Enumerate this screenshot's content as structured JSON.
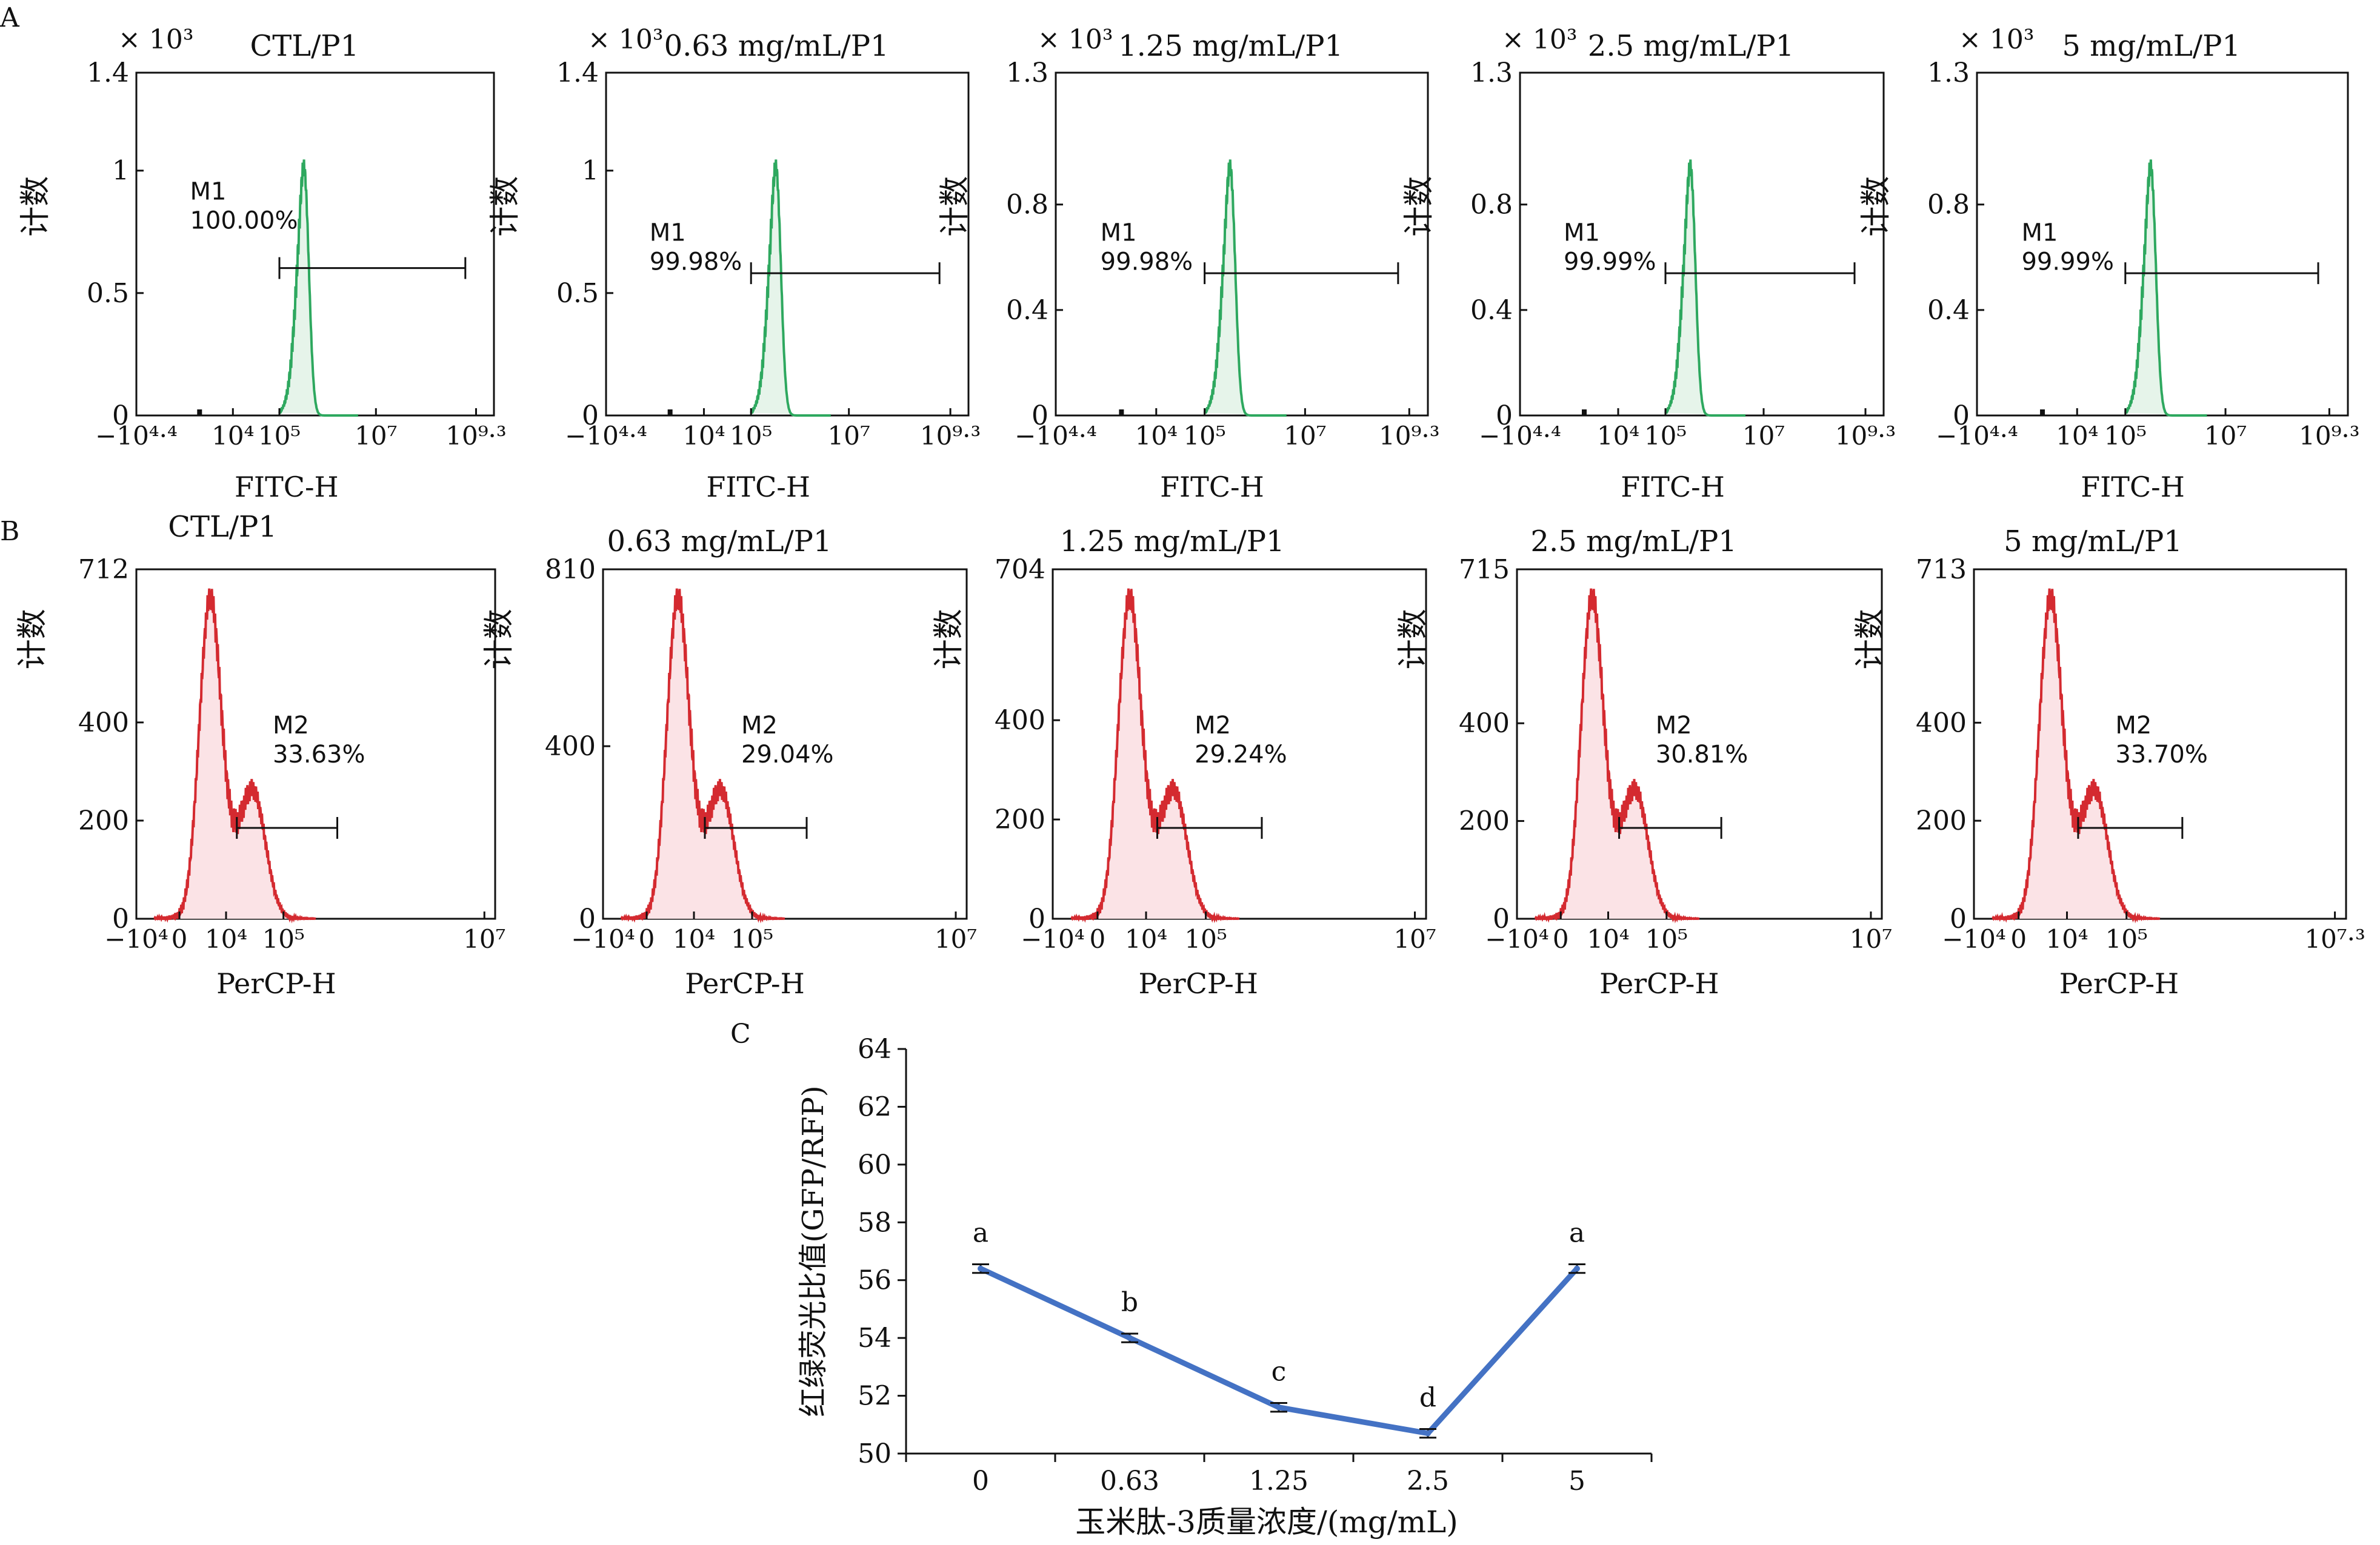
{
  "colors": {
    "fitc": "#2ea85f",
    "fitc_fill": "#e6f4ea",
    "percp": "#d42a30",
    "percp_fill": "#fbe3e6",
    "line": "#4472c4",
    "axis": "#111111"
  },
  "panel_labels": {
    "a": "A",
    "b": "B",
    "c": "C"
  },
  "axis_words": {
    "count": "计数",
    "fitc_x": "FITC-H",
    "percp_x": "PerCP-H"
  },
  "panel_a": [
    {
      "title": "CTL/P1",
      "multiplier": "× 10³",
      "ymax": 1.4,
      "yticks": [
        "0",
        "0.5",
        "1",
        "1.4"
      ],
      "gate": "M1",
      "percent": "100.00%",
      "xticks": [
        "−10⁴·⁴",
        "10⁴",
        "10⁵",
        "10⁷",
        "10⁹·³"
      ]
    },
    {
      "title": "0.63 mg/mL/P1",
      "multiplier": "× 10³",
      "ymax": 1.4,
      "yticks": [
        "0",
        "0.5",
        "1",
        "1.4"
      ],
      "gate": "M1",
      "percent": "99.98%",
      "xticks": [
        "−10⁴·⁴",
        "10⁴",
        "10⁵",
        "10⁷",
        "10⁹·³"
      ]
    },
    {
      "title": "1.25 mg/mL/P1",
      "multiplier": "× 10³",
      "ymax": 1.3,
      "yticks": [
        "0",
        "0.4",
        "0.8",
        "1.3"
      ],
      "gate": "M1",
      "percent": "99.98%",
      "xticks": [
        "−10⁴·⁴",
        "10⁴",
        "10⁵",
        "10⁷",
        "10⁹·³"
      ]
    },
    {
      "title": "2.5 mg/mL/P1",
      "multiplier": "× 10³",
      "ymax": 1.3,
      "yticks": [
        "0",
        "0.4",
        "0.8",
        "1.3"
      ],
      "gate": "M1",
      "percent": "99.99%",
      "xticks": [
        "−10⁴·⁴",
        "10⁴",
        "10⁵",
        "10⁷",
        "10⁹·³"
      ]
    },
    {
      "title": "5 mg/mL/P1",
      "multiplier": "× 10³",
      "ymax": 1.3,
      "yticks": [
        "0",
        "0.4",
        "0.8",
        "1.3"
      ],
      "gate": "M1",
      "percent": "99.99%",
      "xticks": [
        "−10⁴·⁴",
        "10⁴",
        "10⁵",
        "10⁷",
        "10⁹·³"
      ]
    }
  ],
  "panel_b": [
    {
      "title": "CTL/P1",
      "ymax": 712,
      "yticks": [
        "0",
        "200",
        "400",
        "712"
      ],
      "gate": "M2",
      "percent": "33.63%",
      "xticks": [
        "−10⁴",
        "0",
        "10⁴",
        "10⁵",
        "10⁷"
      ]
    },
    {
      "title": "0.63 mg/mL/P1",
      "ymax": 810,
      "yticks": [
        "0",
        "400",
        "810"
      ],
      "gate": "M2",
      "percent": "29.04%",
      "xticks": [
        "−10⁴",
        "0",
        "10⁴",
        "10⁵",
        "10⁷"
      ]
    },
    {
      "title": "1.25 mg/mL/P1",
      "ymax": 704,
      "yticks": [
        "0",
        "200",
        "400",
        "704"
      ],
      "gate": "M2",
      "percent": "29.24%",
      "xticks": [
        "−10⁴",
        "0",
        "10⁴",
        "10⁵",
        "10⁷"
      ]
    },
    {
      "title": "2.5 mg/mL/P1",
      "ymax": 715,
      "yticks": [
        "0",
        "200",
        "400",
        "715"
      ],
      "gate": "M2",
      "percent": "30.81%",
      "xticks": [
        "−10⁴",
        "0",
        "10⁴",
        "10⁵",
        "10⁷"
      ]
    },
    {
      "title": "5 mg/mL/P1",
      "ymax": 713,
      "yticks": [
        "0",
        "200",
        "400",
        "713"
      ],
      "gate": "M2",
      "percent": "33.70%",
      "xticks": [
        "−10⁴",
        "0",
        "10⁴",
        "10⁵",
        "10⁷·³"
      ]
    }
  ],
  "chart_data": {
    "type": "line",
    "categories": [
      "0",
      "0.63",
      "1.25",
      "2.5",
      "5"
    ],
    "series": [
      {
        "values": [
          56.4,
          54.0,
          51.6,
          50.7,
          56.4
        ],
        "errors": [
          0.15,
          0.15,
          0.15,
          0.15,
          0.15
        ],
        "labels": [
          "a",
          "b",
          "c",
          "d",
          "a"
        ]
      }
    ],
    "xlabel": "玉米肽-3质量浓度/(mg/mL)",
    "ylabel": "红绿荧光比值(GFP/RFP)",
    "ylim": [
      50,
      64
    ],
    "yticks": [
      50,
      52,
      54,
      56,
      58,
      60,
      62,
      64
    ],
    "grid": false
  }
}
